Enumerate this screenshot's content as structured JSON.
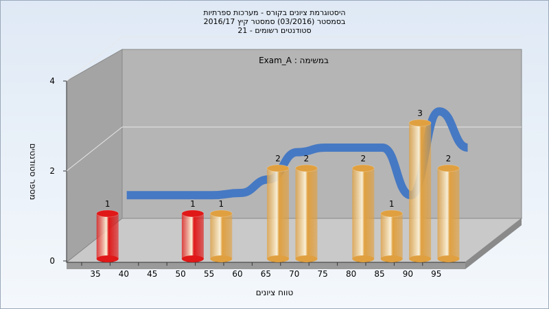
{
  "chart_data": {
    "type": "bar3d",
    "title_lines": [
      "היסטוגרמת ציונים בקורס - מערכות ספרתיות",
      "בסמסטר (03/2016) סמסטר קיץ 2016/17",
      "סטודנטים רשומים - 21"
    ],
    "annotation": "Exam_A : במשימה",
    "y_label": "מספר סטודנטים",
    "x_label": "טווח ציונים",
    "categories": [
      "35",
      "40",
      "45",
      "50",
      "55",
      "60",
      "65",
      "70",
      "75",
      "80",
      "85",
      "90",
      "95"
    ],
    "values": [
      1,
      0,
      0,
      1,
      1,
      0,
      2,
      2,
      0,
      2,
      1,
      3,
      2
    ],
    "colors": [
      "#e01818",
      "#e01818",
      "#e01818",
      "#e01818",
      "#e0a040",
      "#e0a040",
      "#e0a040",
      "#e0a040",
      "#e0a040",
      "#e0a040",
      "#e0a040",
      "#e0a040",
      "#e0a040"
    ],
    "trend": {
      "color": "#3a72c4",
      "values": [
        0.95,
        0.95,
        0.95,
        0.95,
        1.0,
        1.3,
        1.9,
        2.0,
        2.0,
        2.0,
        0.95,
        2.8,
        2.0
      ]
    },
    "ylim": [
      0,
      4
    ],
    "yticks": [
      0,
      2,
      4
    ],
    "grid": true
  }
}
